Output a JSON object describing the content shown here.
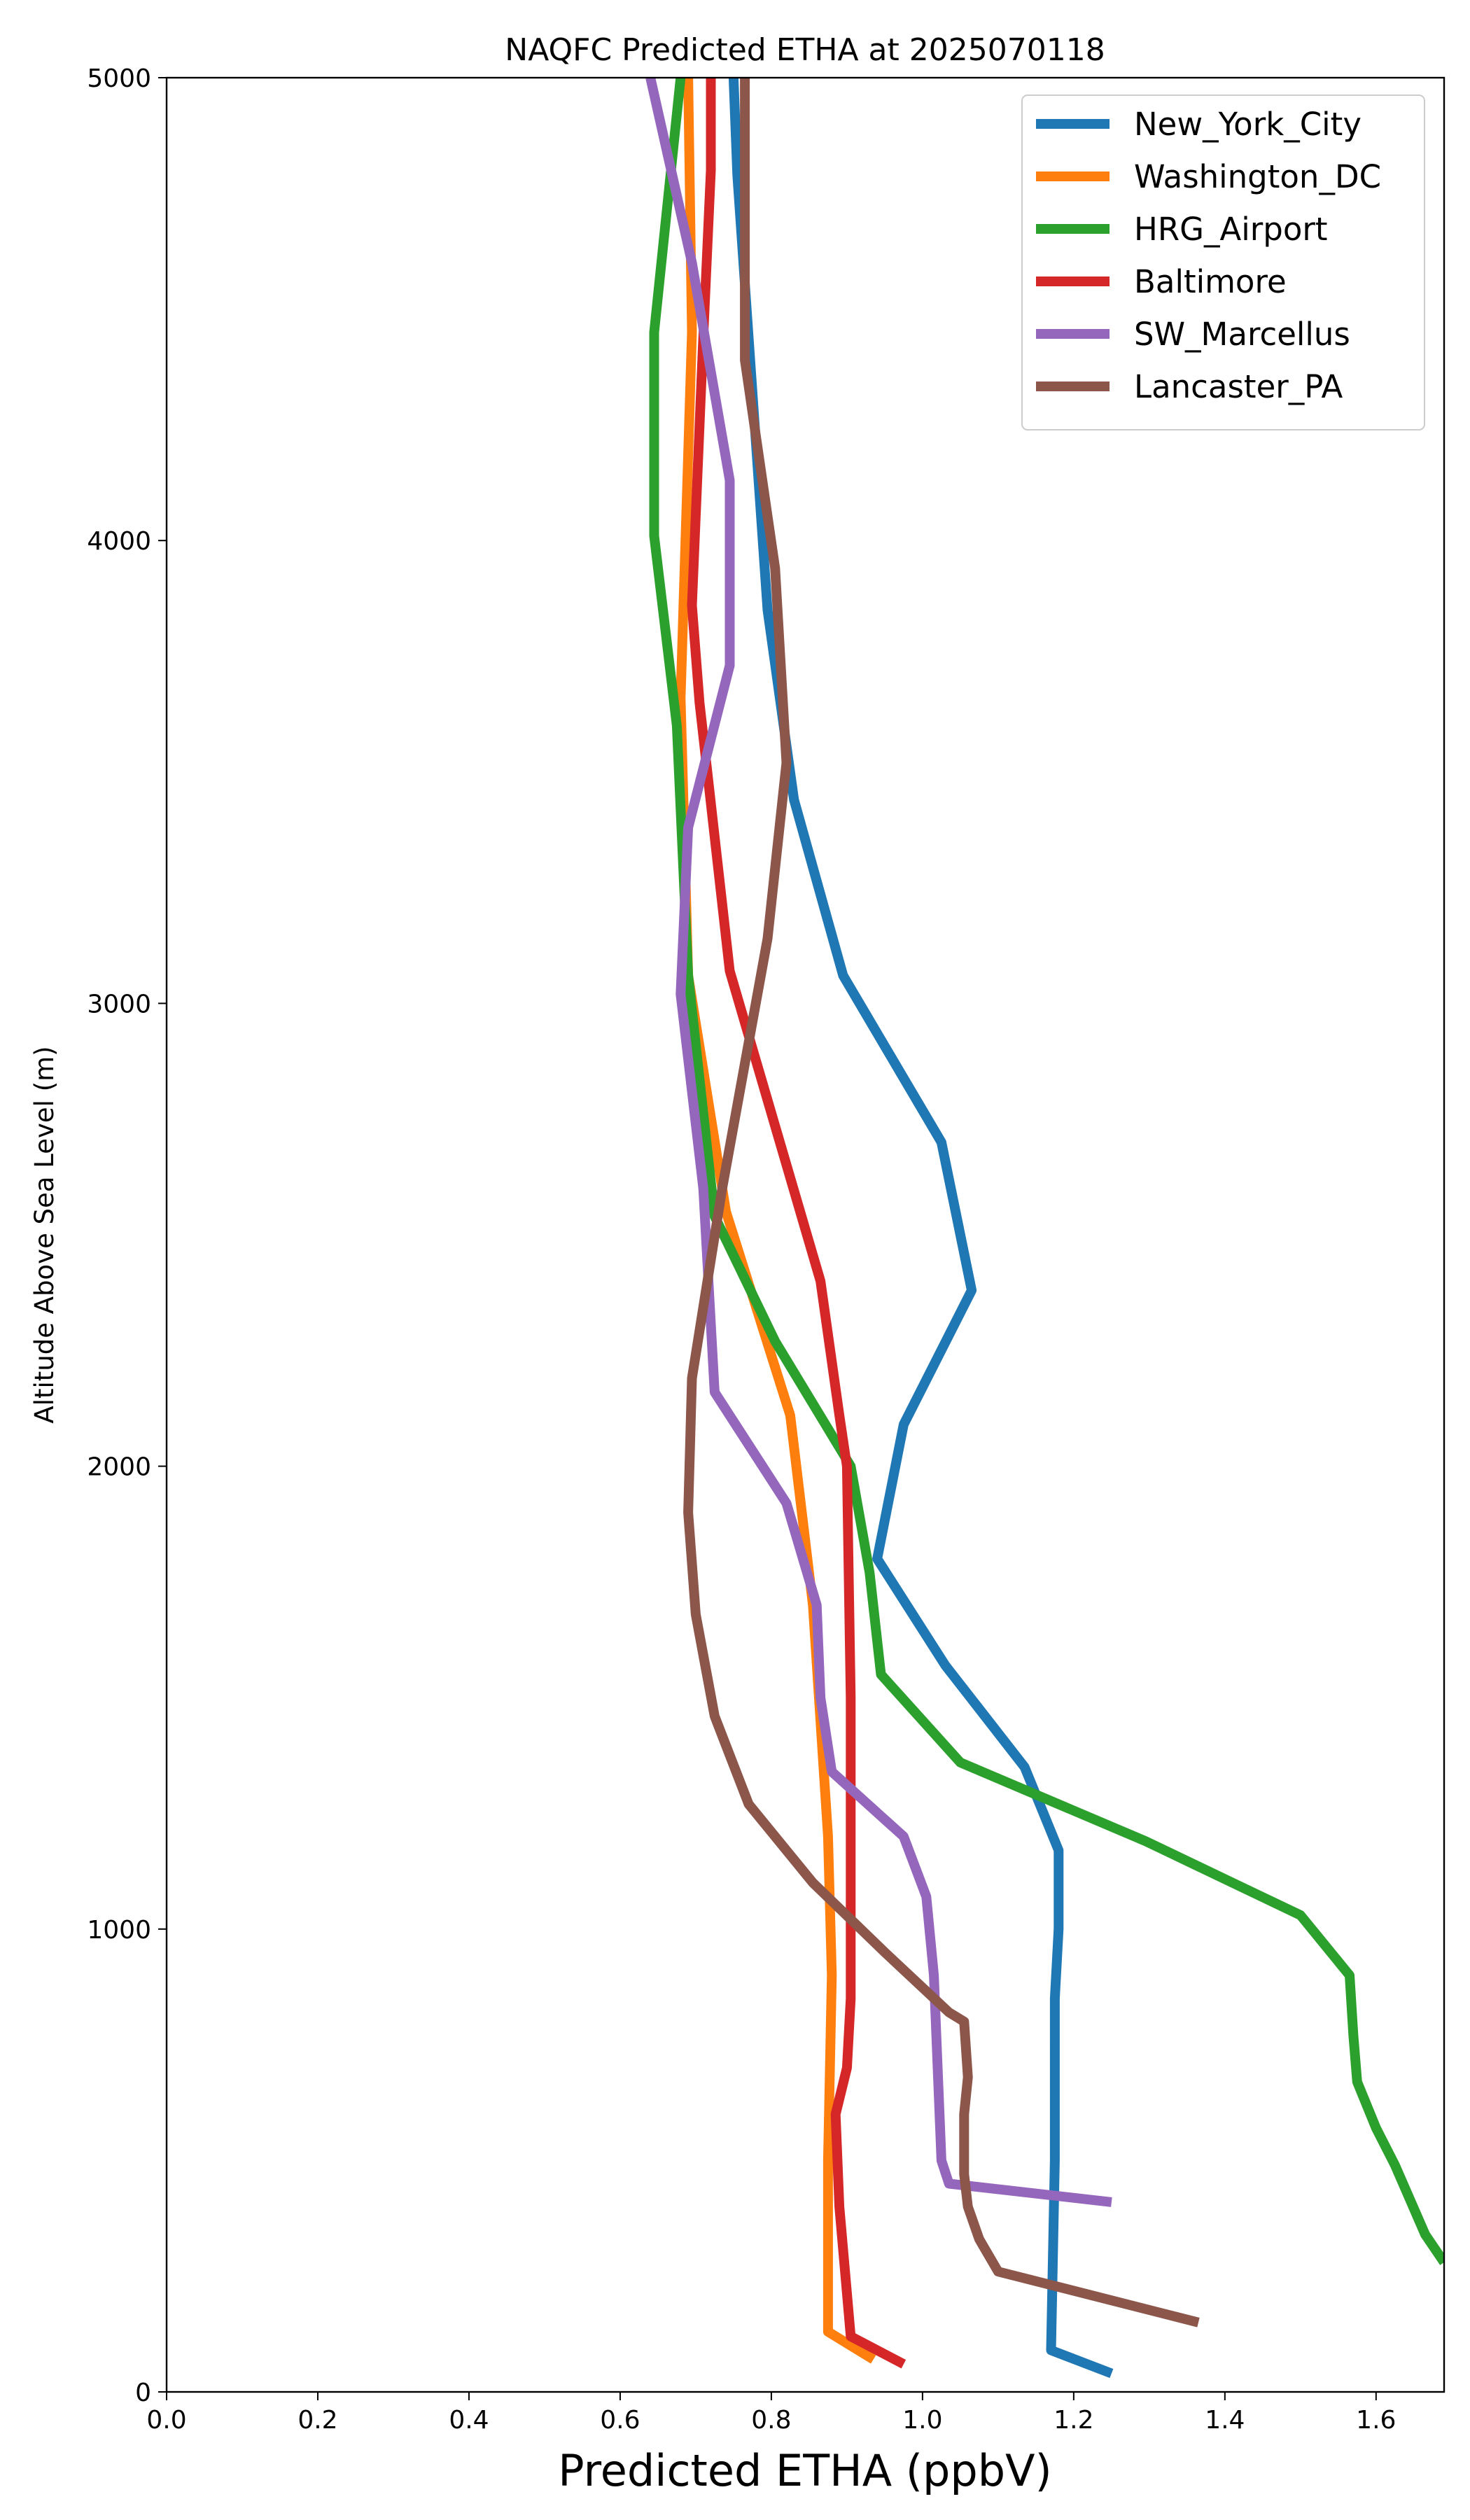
{
  "chart_data": {
    "type": "line",
    "title": "NAQFC Predicted ETHA at 2025070118",
    "xlabel": "Predicted ETHA (ppbV)",
    "ylabel": "Altitude Above Sea Level (m)",
    "xlim": [
      0.0,
      1.69
    ],
    "ylim": [
      0,
      5000
    ],
    "xticks": [
      "0.0",
      "0.2",
      "0.4",
      "0.6",
      "0.8",
      "1.0",
      "1.2",
      "1.4",
      "1.6"
    ],
    "yticks": [
      "0",
      "1000",
      "2000",
      "3000",
      "4000",
      "5000"
    ],
    "grid": false,
    "legend_position": "top-right",
    "series": [
      {
        "name": "New_York_City",
        "color": "#1f77b4",
        "points": [
          [
            1.25,
            40
          ],
          [
            1.17,
            90
          ],
          [
            1.175,
            500
          ],
          [
            1.175,
            850
          ],
          [
            1.18,
            1000
          ],
          [
            1.18,
            1170
          ],
          [
            1.135,
            1350
          ],
          [
            1.03,
            1570
          ],
          [
            0.94,
            1800
          ],
          [
            0.975,
            2090
          ],
          [
            1.065,
            2380
          ],
          [
            1.025,
            2700
          ],
          [
            0.895,
            3060
          ],
          [
            0.83,
            3440
          ],
          [
            0.795,
            3850
          ],
          [
            0.755,
            4790
          ],
          [
            0.75,
            5000
          ]
        ]
      },
      {
        "name": "Washington_DC",
        "color": "#ff7f0e",
        "points": [
          [
            0.935,
            70
          ],
          [
            0.875,
            130
          ],
          [
            0.875,
            500
          ],
          [
            0.88,
            900
          ],
          [
            0.875,
            1200
          ],
          [
            0.855,
            1700
          ],
          [
            0.825,
            2110
          ],
          [
            0.74,
            2550
          ],
          [
            0.69,
            3060
          ],
          [
            0.68,
            3660
          ],
          [
            0.695,
            4450
          ],
          [
            0.69,
            5000
          ]
        ]
      },
      {
        "name": "HRG_Airport",
        "color": "#2ca02c",
        "points": [
          [
            1.69,
            280
          ],
          [
            1.665,
            340
          ],
          [
            1.625,
            490
          ],
          [
            1.6,
            570
          ],
          [
            1.575,
            670
          ],
          [
            1.57,
            770
          ],
          [
            1.565,
            900
          ],
          [
            1.5,
            1030
          ],
          [
            1.295,
            1190
          ],
          [
            1.05,
            1360
          ],
          [
            0.945,
            1550
          ],
          [
            0.93,
            1770
          ],
          [
            0.905,
            2000
          ],
          [
            0.805,
            2270
          ],
          [
            0.725,
            2540
          ],
          [
            0.69,
            3060
          ],
          [
            0.675,
            3600
          ],
          [
            0.645,
            4010
          ],
          [
            0.645,
            4450
          ],
          [
            0.68,
            5000
          ]
        ]
      },
      {
        "name": "Baltimore",
        "color": "#d62728",
        "points": [
          [
            0.975,
            60
          ],
          [
            0.905,
            120
          ],
          [
            0.89,
            400
          ],
          [
            0.885,
            600
          ],
          [
            0.9,
            700
          ],
          [
            0.905,
            850
          ],
          [
            0.905,
            1000
          ],
          [
            0.905,
            1500
          ],
          [
            0.9,
            2000
          ],
          [
            0.89,
            2110
          ],
          [
            0.865,
            2400
          ],
          [
            0.745,
            3070
          ],
          [
            0.705,
            3650
          ],
          [
            0.695,
            3860
          ],
          [
            0.71,
            4440
          ],
          [
            0.72,
            4800
          ],
          [
            0.72,
            5000
          ]
        ]
      },
      {
        "name": "SW_Marcellus",
        "color": "#9467bd",
        "points": [
          [
            1.25,
            410
          ],
          [
            1.035,
            450
          ],
          [
            1.025,
            500
          ],
          [
            1.02,
            700
          ],
          [
            1.015,
            900
          ],
          [
            1.005,
            1070
          ],
          [
            0.975,
            1200
          ],
          [
            0.88,
            1340
          ],
          [
            0.865,
            1500
          ],
          [
            0.86,
            1700
          ],
          [
            0.82,
            1920
          ],
          [
            0.725,
            2160
          ],
          [
            0.71,
            2600
          ],
          [
            0.68,
            3020
          ],
          [
            0.69,
            3380
          ],
          [
            0.745,
            3730
          ],
          [
            0.745,
            4130
          ],
          [
            0.695,
            4600
          ],
          [
            0.64,
            5000
          ]
        ]
      },
      {
        "name": "Lancaster_PA",
        "color": "#8c564b",
        "points": [
          [
            1.365,
            150
          ],
          [
            1.1,
            260
          ],
          [
            1.075,
            330
          ],
          [
            1.06,
            400
          ],
          [
            1.055,
            470
          ],
          [
            1.055,
            600
          ],
          [
            1.06,
            680
          ],
          [
            1.055,
            800
          ],
          [
            1.035,
            820
          ],
          [
            0.95,
            950
          ],
          [
            0.855,
            1100
          ],
          [
            0.77,
            1270
          ],
          [
            0.725,
            1460
          ],
          [
            0.7,
            1680
          ],
          [
            0.69,
            1900
          ],
          [
            0.695,
            2190
          ],
          [
            0.735,
            2600
          ],
          [
            0.795,
            3140
          ],
          [
            0.82,
            3520
          ],
          [
            0.805,
            3940
          ],
          [
            0.765,
            4390
          ],
          [
            0.765,
            5000
          ]
        ]
      }
    ]
  }
}
